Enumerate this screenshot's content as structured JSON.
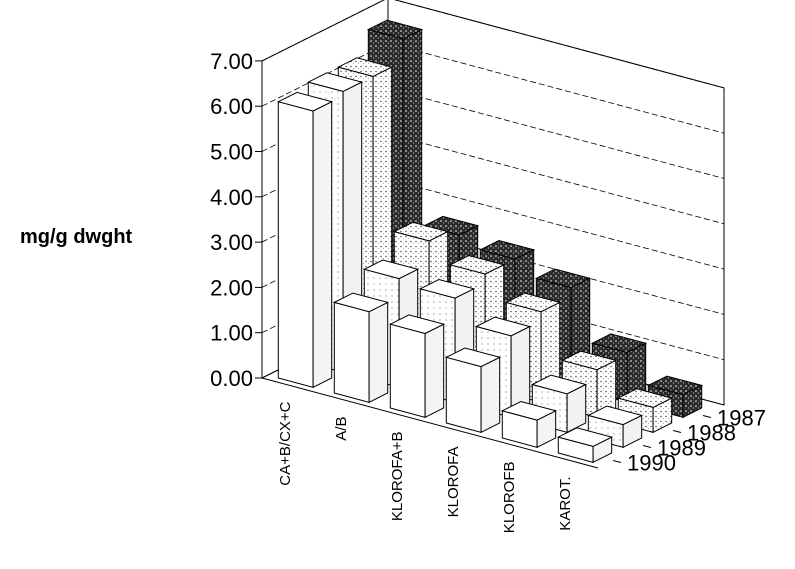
{
  "chart_data": {
    "type": "bar",
    "ylabel": "mg/g dwght",
    "ylim": [
      0,
      7
    ],
    "yticks": [
      "0.00",
      "1.00",
      "2.00",
      "3.00",
      "4.00",
      "5.00",
      "6.00",
      "7.00"
    ],
    "categories": [
      "CA+B/CX+C",
      "A/B",
      "KLOROFA+B",
      "KLOROFA",
      "KLOROFB",
      "KAROT."
    ],
    "category_labels": [
      "CA+B/CX+C",
      "A/B",
      "KLOROFA+B",
      "KLOROFA",
      "KLOROFB",
      "KAROT."
    ],
    "series": [
      {
        "name": "1987",
        "values": [
          6.7,
          2.7,
          2.5,
          2.2,
          1.1,
          0.5
        ]
      },
      {
        "name": "1988",
        "values": [
          6.2,
          2.9,
          2.5,
          2.0,
          1.05,
          0.55
        ]
      },
      {
        "name": "1989",
        "values": [
          6.2,
          2.4,
          2.3,
          1.8,
          0.85,
          0.5
        ]
      },
      {
        "name": "1990",
        "values": [
          6.1,
          2.0,
          1.85,
          1.45,
          0.6,
          0.35
        ]
      }
    ],
    "series_colors": [
      "#1a1a1a",
      "#cfcfcf",
      "#ececec",
      "#ffffff"
    ],
    "grid": true
  }
}
